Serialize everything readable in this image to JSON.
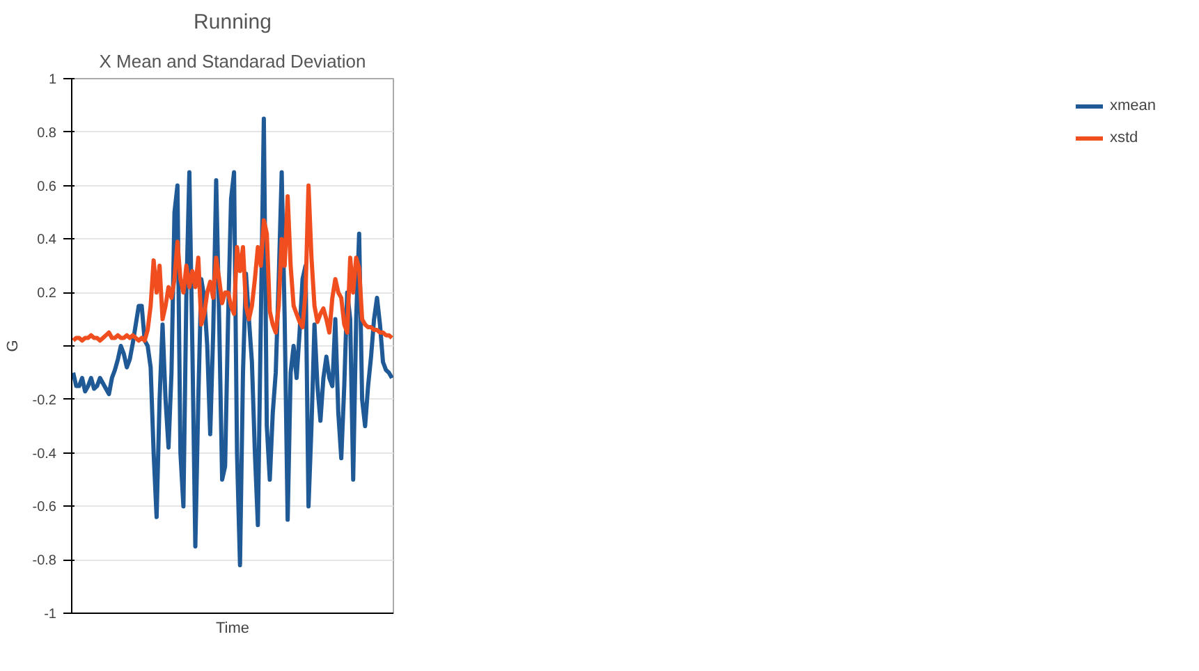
{
  "chart_data": {
    "type": "line",
    "title": "Running",
    "subtitle": "X Mean and Standarad Deviation",
    "xlabel": "Time",
    "ylabel": "G",
    "categories": [
      null,
      null,
      null,
      null,
      null,
      null,
      null,
      null,
      null,
      null,
      null,
      null,
      null,
      null,
      null,
      null,
      null,
      null,
      null,
      null,
      null,
      null,
      null,
      null,
      null,
      null,
      null,
      null,
      null,
      null,
      null,
      null,
      null,
      null,
      null,
      null,
      null,
      null,
      null,
      null,
      null,
      null,
      null,
      null,
      null,
      null,
      null,
      null,
      null,
      null,
      null,
      null,
      null,
      null,
      null,
      null,
      null,
      null,
      null,
      null,
      null,
      null,
      null,
      null,
      null,
      null,
      null,
      null,
      null,
      null,
      null,
      null,
      null,
      null,
      null,
      null,
      null,
      null,
      null,
      null,
      null,
      null,
      null,
      null,
      null,
      null,
      null,
      null,
      null,
      null,
      null,
      null,
      null,
      null,
      null,
      null,
      null,
      null,
      null,
      null,
      null,
      null,
      null,
      null,
      null,
      null,
      null,
      null
    ],
    "series": [
      {
        "name": "xmean",
        "color": "#1f5a96",
        "values": [
          -0.1,
          -0.15,
          -0.15,
          -0.12,
          -0.17,
          -0.15,
          -0.12,
          -0.16,
          -0.15,
          -0.12,
          -0.14,
          -0.16,
          -0.18,
          -0.12,
          -0.09,
          -0.05,
          0,
          -0.03,
          -0.08,
          -0.05,
          0.01,
          0.08,
          0.15,
          0.15,
          0.02,
          0,
          -0.08,
          -0.4,
          -0.64,
          -0.2,
          0.08,
          -0.2,
          -0.38,
          -0.1,
          0.5,
          0.6,
          -0.4,
          -0.6,
          0.2,
          0.65,
          0,
          -0.75,
          -0.2,
          0.25,
          0.18,
          0,
          -0.33,
          0.05,
          0.62,
          0.1,
          -0.5,
          -0.45,
          0.1,
          0.55,
          0.65,
          -0.4,
          -0.82,
          -0.1,
          0.27,
          0.1,
          -0.06,
          -0.4,
          -0.67,
          0.1,
          0.85,
          -0.3,
          -0.5,
          -0.25,
          -0.1,
          0.25,
          0.65,
          0.1,
          -0.65,
          -0.1,
          0,
          -0.12,
          0.05,
          0.25,
          0.3,
          -0.6,
          -0.3,
          0.08,
          -0.15,
          -0.28,
          -0.12,
          -0.04,
          -0.12,
          -0.15,
          0.1,
          -0.25,
          -0.42,
          -0.15,
          0.2,
          0.1,
          -0.5,
          0.1,
          0.42,
          -0.2,
          -0.3,
          -0.15,
          -0.04,
          0.1,
          0.18,
          0.08,
          -0.06,
          -0.09,
          -0.1,
          -0.12
        ]
      },
      {
        "name": "xstd",
        "color": "#f04e1e",
        "values": [
          0.02,
          0.03,
          0.03,
          0.02,
          0.03,
          0.03,
          0.04,
          0.03,
          0.03,
          0.02,
          0.03,
          0.04,
          0.05,
          0.03,
          0.03,
          0.04,
          0.03,
          0.03,
          0.04,
          0.03,
          0.04,
          0.03,
          0.02,
          0.03,
          0.02,
          0.06,
          0.15,
          0.32,
          0.2,
          0.3,
          0.1,
          0.15,
          0.22,
          0.18,
          0.25,
          0.39,
          0.25,
          0.2,
          0.3,
          0.22,
          0.28,
          0.22,
          0.33,
          0.08,
          0.12,
          0.2,
          0.24,
          0.18,
          0.33,
          0.25,
          0.16,
          0.2,
          0.2,
          0.15,
          0.12,
          0.37,
          0.28,
          0.37,
          0.15,
          0.1,
          0.15,
          0.25,
          0.37,
          0.3,
          0.47,
          0.42,
          0.13,
          0.08,
          0.05,
          0.15,
          0.4,
          0.3,
          0.56,
          0.3,
          0.15,
          0.12,
          0.09,
          0.07,
          0.2,
          0.6,
          0.33,
          0.15,
          0.09,
          0.12,
          0.14,
          0.1,
          0.05,
          0.18,
          0.25,
          0.2,
          0.18,
          0.08,
          0.05,
          0.33,
          0.2,
          0.33,
          0.29,
          0.1,
          0.08,
          0.07,
          0.07,
          0.06,
          0.06,
          0.05,
          0.05,
          0.04,
          0.04,
          0.03
        ]
      }
    ],
    "ylim": [
      -1,
      1
    ],
    "yticks": [
      -1,
      -0.8,
      -0.6,
      -0.4,
      -0.2,
      {
        "value": 0,
        "label": null
      },
      0.2,
      0.4,
      0.6,
      0.8,
      1
    ],
    "grid": "y",
    "legend": "right",
    "line_style": "solid",
    "marker": "none"
  }
}
